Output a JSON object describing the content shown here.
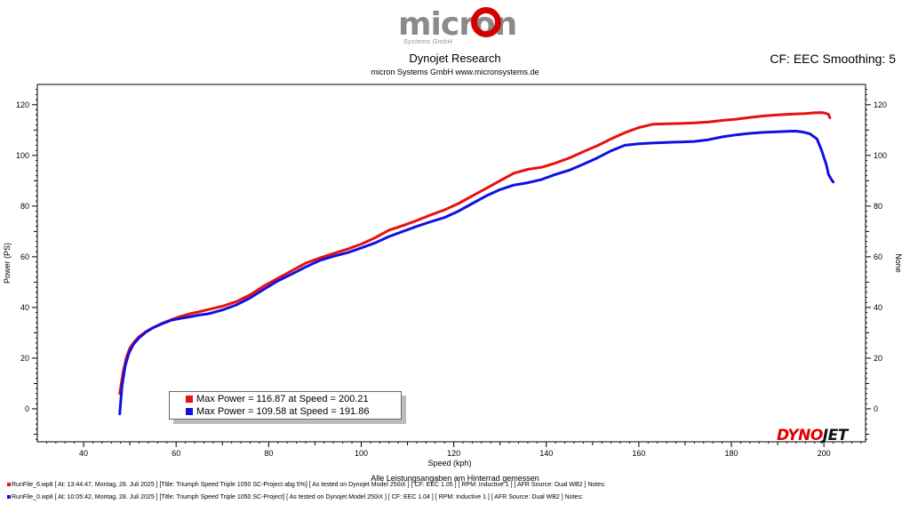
{
  "header": {
    "logo_text": "micron",
    "logo_subtext": "Systems GmbH",
    "title": "Dynojet Research",
    "subtitle": "micron Systems GmbH  www.micronsystems.de",
    "smoothing": "CF: EEC Smoothing: 5"
  },
  "brand": {
    "dyno": "DYNO",
    "jet": "JET"
  },
  "colors": {
    "series1": "#e81010",
    "series2": "#1010e0"
  },
  "legend": {
    "items": [
      "Max Power = 116.87 at Speed = 200.21",
      "Max Power = 109.58 at Speed = 191.86"
    ]
  },
  "footer": {
    "note": "Alle Leistungsangaben am Hinterrad gemessen",
    "run1": "RunFile_6.wp8 [ At: 13:44:47, Montag, 28. Juli 2025 ] [Title: Triumph Speed Triple 1050 SC-Project abg 5%]  [ As tested on Dynojet Model 250iX ] [ CF: EEC 1.05 ] [ RPM: Inductive 1 ] [ AFR Source: Dual WB2 ] Notes:",
    "run2": "RunFile_0.wp8 [ At: 10:05:42, Montag, 28. Juli 2025 ] [Title: Triumph Speed Triple 1050 SC-Project]  [ As tested on Dynojet Model 250iX ] [ CF: EEC 1.04 ] [ RPM: Inductive 1 ] [ AFR Source: Dual WB2 ] Notes:"
  },
  "chart_data": {
    "type": "line",
    "xlabel": "Speed (kph)",
    "ylabel": "Power (PS)",
    "y2label": "None",
    "xlim": [
      30,
      209
    ],
    "ylim": [
      -13,
      128
    ],
    "xticks": [
      40,
      60,
      80,
      100,
      120,
      140,
      160,
      180,
      200
    ],
    "yticks": [
      0,
      20,
      40,
      60,
      80,
      100,
      120
    ],
    "grid": false,
    "legend_position": "bottom-left",
    "series": [
      {
        "x": [
          47.8,
          48.5,
          49.2,
          50,
          51,
          52,
          53.5,
          55,
          57,
          59,
          61,
          63,
          65,
          67,
          70,
          73,
          76,
          79,
          82,
          85,
          88,
          91,
          94,
          97,
          100,
          103,
          106,
          109,
          112,
          115,
          118,
          121,
          124,
          127,
          130,
          133,
          136,
          139,
          142,
          145,
          148,
          151,
          154,
          157,
          160,
          163,
          166,
          169,
          172,
          175,
          178,
          181,
          184,
          187,
          190,
          193,
          196,
          198,
          199.5,
          200.2,
          201,
          201.3
        ],
        "y": [
          6,
          14,
          20,
          24,
          26.5,
          28.5,
          30.5,
          32,
          33.8,
          35.2,
          36.5,
          37.5,
          38.3,
          39.2,
          40.5,
          42.3,
          45,
          48.5,
          51.5,
          54.5,
          57.5,
          59.5,
          61.3,
          63,
          65,
          67.5,
          70.5,
          72.3,
          74.3,
          76.5,
          78.5,
          81,
          84,
          87,
          90,
          93,
          94.5,
          95.3,
          97,
          99,
          101.5,
          103.8,
          106.5,
          109,
          111,
          112.3,
          112.5,
          112.6,
          112.8,
          113.2,
          113.8,
          114.3,
          115,
          115.6,
          116,
          116.3,
          116.5,
          116.8,
          116.9,
          116.7,
          116.2,
          114.8
        ]
      },
      {
        "x": [
          47.8,
          48.3,
          49,
          49.8,
          50.8,
          52,
          53.5,
          55,
          57,
          59,
          61,
          63,
          65,
          67,
          70,
          73,
          76,
          79,
          82,
          85,
          88,
          91,
          94,
          97,
          100,
          103,
          106,
          109,
          112,
          115,
          118,
          121,
          124,
          127,
          130,
          133,
          136,
          139,
          142,
          145,
          148,
          151,
          154,
          157,
          160,
          163,
          166,
          169,
          172,
          175,
          178,
          181,
          184,
          187,
          190,
          192,
          194,
          195.5,
          197,
          198.5,
          199.5,
          200.5,
          201,
          201.6,
          202
        ],
        "y": [
          -2,
          9,
          17,
          22,
          25.5,
          28,
          30.3,
          32,
          33.6,
          35,
          35.7,
          36.3,
          37,
          37.5,
          39,
          41,
          43.8,
          47.2,
          50.5,
          53.2,
          56,
          58.5,
          60.2,
          61.6,
          63.5,
          65.5,
          68,
          70,
          72,
          73.8,
          75.5,
          78,
          81,
          84,
          86.5,
          88.3,
          89.2,
          90.5,
          92.5,
          94.2,
          96.5,
          99,
          101.8,
          104,
          104.6,
          104.9,
          105.1,
          105.3,
          105.5,
          106.2,
          107.3,
          108.1,
          108.7,
          109.1,
          109.3,
          109.5,
          109.6,
          109.2,
          108.5,
          106.5,
          102,
          96.5,
          92.5,
          90.5,
          89.5
        ]
      }
    ]
  }
}
